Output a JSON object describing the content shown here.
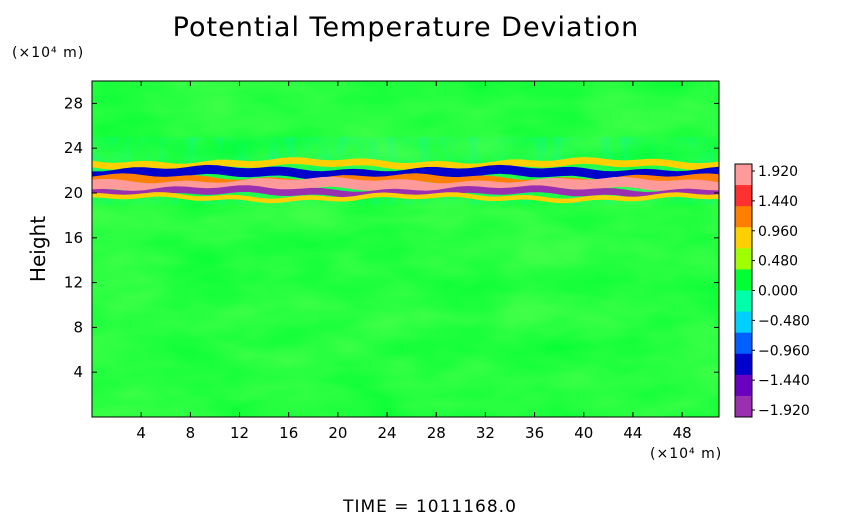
{
  "chart_data": {
    "type": "heatmap",
    "title": "Potential Temperature Deviation",
    "xlabel": "",
    "ylabel": "Height",
    "x_unit": "(×10⁴ m)",
    "y_unit": "(×10⁴ m)",
    "x_ticks": [
      4,
      8,
      12,
      16,
      20,
      24,
      28,
      32,
      36,
      40,
      44,
      48
    ],
    "y_ticks": [
      4,
      8,
      12,
      16,
      20,
      24,
      28
    ],
    "xlim": [
      0,
      51
    ],
    "ylim": [
      0,
      30
    ],
    "colorbar": {
      "labels": [
        "1.920",
        "1.440",
        "0.960",
        "0.480",
        "0.000",
        "−0.480",
        "−0.960",
        "−1.440",
        "−1.920"
      ],
      "colors": [
        "#ff9a9a",
        "#ff3030",
        "#ff8000",
        "#ffd000",
        "#a0ff00",
        "#00ff33",
        "#00ffaa",
        "#00d0ff",
        "#0060ff",
        "#0000cc",
        "#6a00c0",
        "#9a30b0"
      ]
    },
    "bands": [
      {
        "y": 22.6,
        "thickness": 0.6,
        "value": 0.9
      },
      {
        "y": 21.8,
        "thickness": 0.8,
        "value": -1.2
      },
      {
        "y": 21.1,
        "thickness": 0.7,
        "value": 1.3
      },
      {
        "y": 20.7,
        "thickness": 0.9,
        "value": 1.9
      },
      {
        "y": 20.1,
        "thickness": 0.6,
        "value": -1.9
      },
      {
        "y": 19.6,
        "thickness": 0.4,
        "value": 0.7
      }
    ],
    "background_value": 0.2,
    "footer": "TIME  =  1011168.0"
  }
}
